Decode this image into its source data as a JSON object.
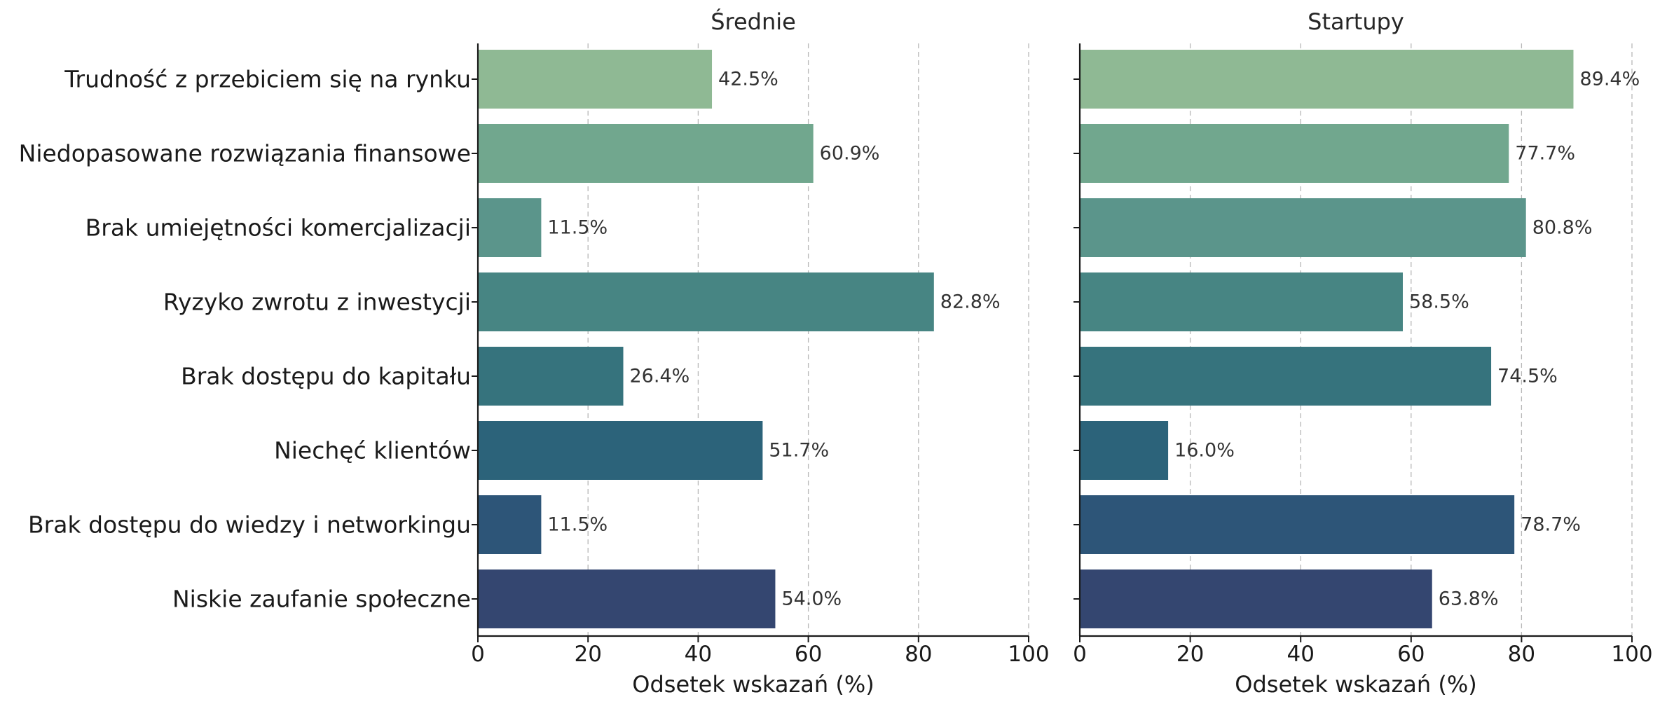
{
  "chart_data": {
    "type": "bar",
    "orientation": "horizontal",
    "categories": [
      "Trudność z przebiciem się na rynku",
      "Niedopasowane rozwiązania finansowe",
      "Brak umiejętności komercjalizacji",
      "Ryzyko zwrotu z inwestycji",
      "Brak dostępu do kapitału",
      "Niechęć klientów",
      "Brak dostępu do wiedzy i networkingu",
      "Niskie zaufanie społeczne"
    ],
    "bar_colors": [
      "#8fb994",
      "#71a78e",
      "#5b958b",
      "#478583",
      "#36737d",
      "#2c637a",
      "#2d5578",
      "#344670"
    ],
    "panels": [
      {
        "title": "Średnie",
        "xlabel": "Odsetek wskazań (%)",
        "values": [
          42.5,
          60.9,
          11.5,
          82.8,
          26.4,
          51.7,
          11.5,
          54.0
        ],
        "value_labels": [
          "42.5%",
          "60.9%",
          "11.5%",
          "82.8%",
          "26.4%",
          "51.7%",
          "11.5%",
          "54.0%"
        ]
      },
      {
        "title": "Startupy",
        "xlabel": "Odsetek wskazań (%)",
        "values": [
          89.4,
          77.7,
          80.8,
          58.5,
          74.5,
          16.0,
          78.7,
          63.8
        ],
        "value_labels": [
          "89.4%",
          "77.7%",
          "80.8%",
          "58.5%",
          "74.5%",
          "16.0%",
          "78.7%",
          "63.8%"
        ]
      }
    ],
    "xlim": [
      0,
      100
    ],
    "xticks": [
      0,
      20,
      40,
      60,
      80,
      100
    ],
    "xtick_labels": [
      "0",
      "20",
      "40",
      "60",
      "80",
      "100"
    ],
    "grid": "vertical-dashed",
    "legend": "none"
  }
}
